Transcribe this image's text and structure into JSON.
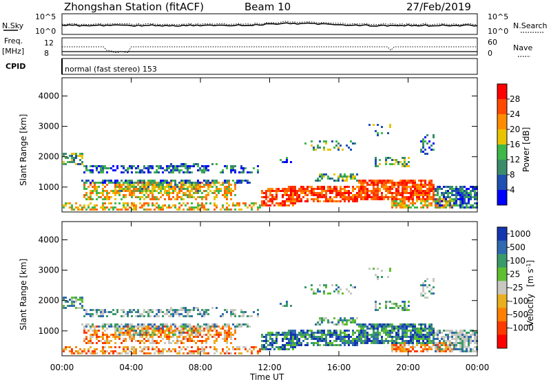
{
  "header": {
    "station": "Zhongshan Station (fitACF)",
    "beam": "Beam 10",
    "date": "27/Feb/2019"
  },
  "panels": {
    "nsky_label": "N.Sky",
    "nsky_ticks": [
      "10^5",
      "10^0"
    ],
    "nsearch_label": "N.Search",
    "nsearch_ticks": [
      "10^5",
      "10^0"
    ],
    "freq_label": "Freq.",
    "freq_unit": "[MHz]",
    "freq_ticks": [
      "12",
      "8"
    ],
    "nave_label": "Nave",
    "nave_ticks": [
      "60",
      "0"
    ],
    "cpid_label": "CPID",
    "cpid_text": "normal (fast stereo) 153"
  },
  "chart_data": [
    {
      "type": "heatmap",
      "name": "power",
      "ylabel": "Slant Range [km]",
      "ylim": [
        180,
        4600
      ],
      "yticks": [
        "4000",
        "3000",
        "2000",
        "1000"
      ],
      "colorbar_label": "Power [dB]",
      "colorbar_ticks": [
        "28",
        "24",
        "20",
        "16",
        "12",
        "8",
        "4"
      ],
      "colorbar_colors": [
        "#ff0000",
        "#ff4a00",
        "#ff8c00",
        "#e8c400",
        "#3fb84a",
        "#3a8c6a",
        "#1f4fb0",
        "#0000ff"
      ]
    },
    {
      "type": "heatmap",
      "name": "velocity",
      "ylabel": "Slant Range [km]",
      "ylim": [
        180,
        4600
      ],
      "yticks": [
        "4000",
        "3000",
        "2000",
        "1000"
      ],
      "xlabel": "Time UT",
      "xticks": [
        "00:00",
        "04:00",
        "08:00",
        "12:00",
        "16:00",
        "20:00",
        "00:00"
      ],
      "colorbar_label": "Velocity",
      "colorbar_unit": "[m s",
      "colorbar_unit_exp": "-1",
      "colorbar_unit_close": "]",
      "colorbar_ticks": [
        "1000",
        "500",
        "100",
        "25",
        "-25",
        "-100",
        "-500",
        "-1000"
      ],
      "colorbar_colors": [
        "#1535b0",
        "#2f6ab0",
        "#3a9a6a",
        "#5fbf30",
        "#c8c8c0",
        "#e8b020",
        "#ff8000",
        "#ff3a00",
        "#ff0000"
      ]
    }
  ]
}
